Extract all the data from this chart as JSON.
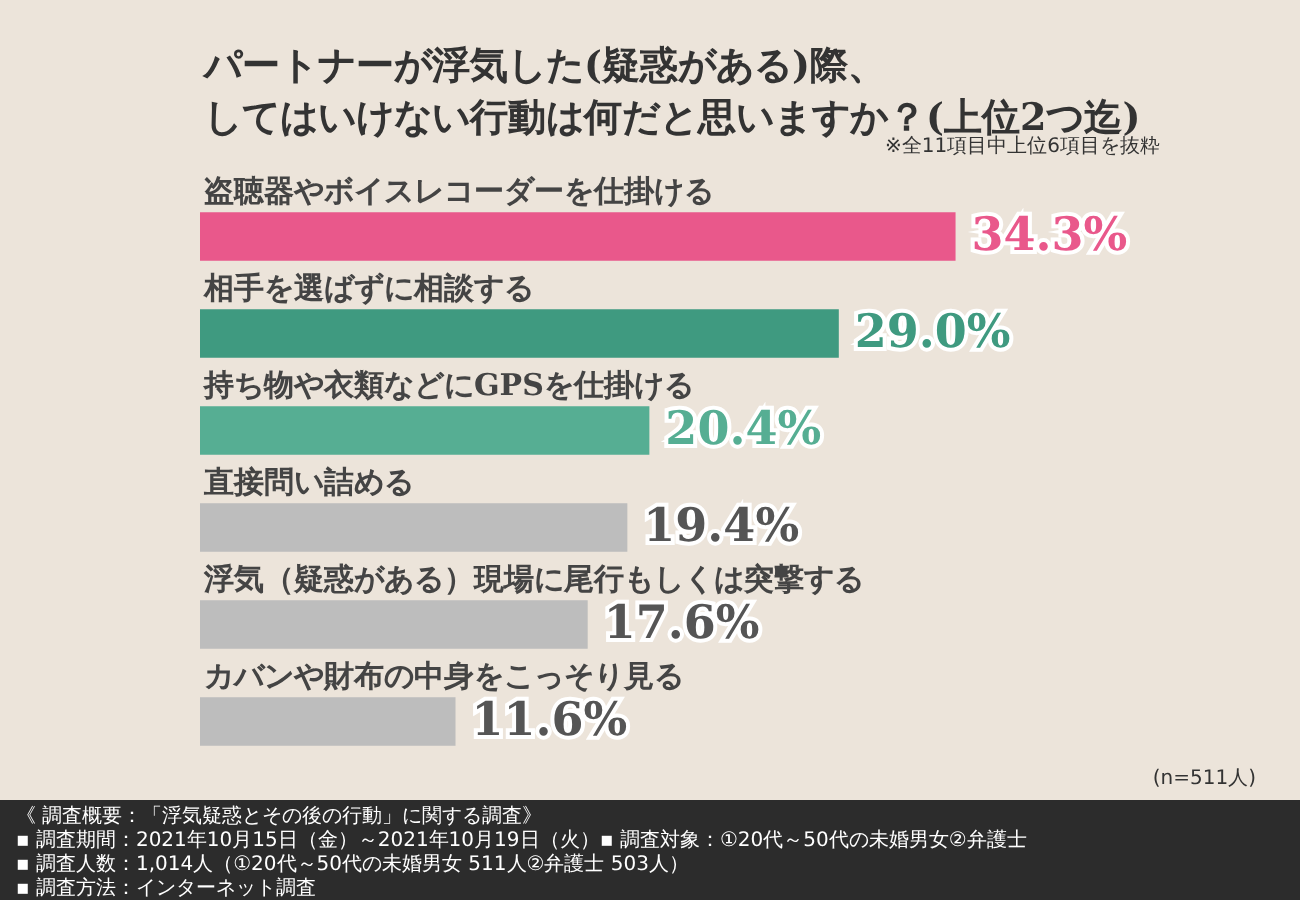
{
  "chart_data": {
    "type": "bar",
    "orientation": "horizontal",
    "title": "パートナーが浮気した(疑惑がある)際、してはいけない行動は何だと思いますか？(上位2つ迄)",
    "categories": [
      "盗聴器やボイスレコーダーを仕掛ける",
      "相手を選ばずに相談する",
      "持ち物や衣類などにGPSを仕掛ける",
      "直接問い詰める",
      "浮気（疑惑がある）現場に尾行もしくは突撃する",
      "カバンや財布の中身をこっそり見る"
    ],
    "values": [
      34.3,
      29.0,
      20.4,
      19.4,
      17.6,
      11.6
    ],
    "value_labels": [
      "34.3%",
      "29.0%",
      "20.4%",
      "19.4%",
      "17.6%",
      "11.6%"
    ],
    "colors": [
      "#e9588b",
      "#3f9a80",
      "#56ae93",
      "#bdbdbd",
      "#bdbdbd",
      "#bdbdbd"
    ],
    "annotations": [
      "※全11項目中上位6項目を抜粋",
      "(n=511人)",
      "《 調査概要：「浮気疑惑とその後の行動」に関する調査》",
      "▪ 調査期間：2021年10月15日（金）～2021年10月19日（火）",
      "▪ 調査人数：1,014人（①20代～50代の未婚男女 511人②弁護士 503人）",
      "▪ 調査方法：インターネット調査",
      "▪ 調査対象：①20代～50代の未婚男女②弁護士"
    ]
  }
}
